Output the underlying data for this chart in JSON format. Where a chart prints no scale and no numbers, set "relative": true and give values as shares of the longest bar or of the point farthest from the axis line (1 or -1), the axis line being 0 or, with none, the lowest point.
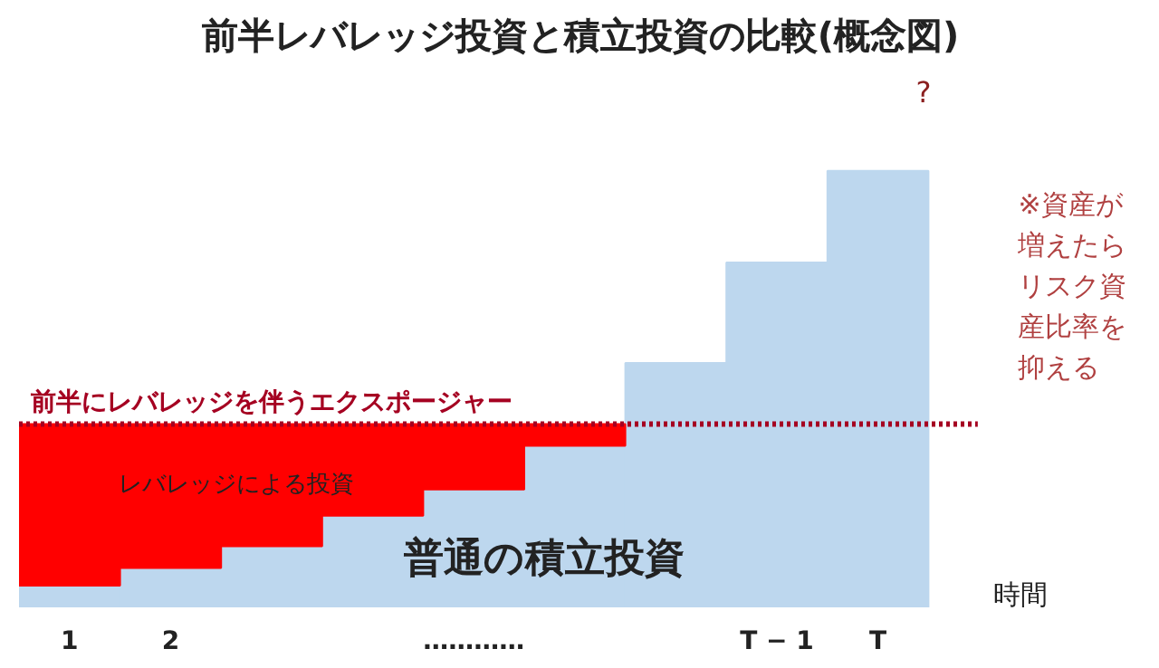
{
  "chart_data": {
    "type": "bar",
    "title": "前半レバレッジ投資と積立投資の比較(概念図)",
    "xlabel": "時間",
    "relative": true,
    "stacked": true,
    "tick_labels": "x",
    "grid": false,
    "legend": false,
    "categories": [
      "1",
      "2",
      null,
      null,
      "…………",
      null,
      null,
      "T − 1",
      "T"
    ],
    "series": [
      {
        "name": "普通の積立投資",
        "color": "#bdd7ee",
        "values": [
          0.05,
          0.09,
          0.14,
          0.21,
          0.27,
          0.37,
          0.56,
          0.79,
          1.0
        ]
      },
      {
        "name": "レバレッジによる投資",
        "color": "#ff0000",
        "values": [
          0.37,
          0.33,
          0.28,
          0.21,
          0.15,
          0.05,
          null,
          null,
          null
        ]
      }
    ],
    "ref_lines": [
      {
        "axis": "y",
        "value": 0.42,
        "label": "前半にレバレッジを伴うエクスポージャー",
        "color": "#a50021",
        "line_style": "dotted"
      }
    ],
    "annotations": [
      "?",
      "※資産が増えたらリスク資産比率を抑える"
    ]
  }
}
